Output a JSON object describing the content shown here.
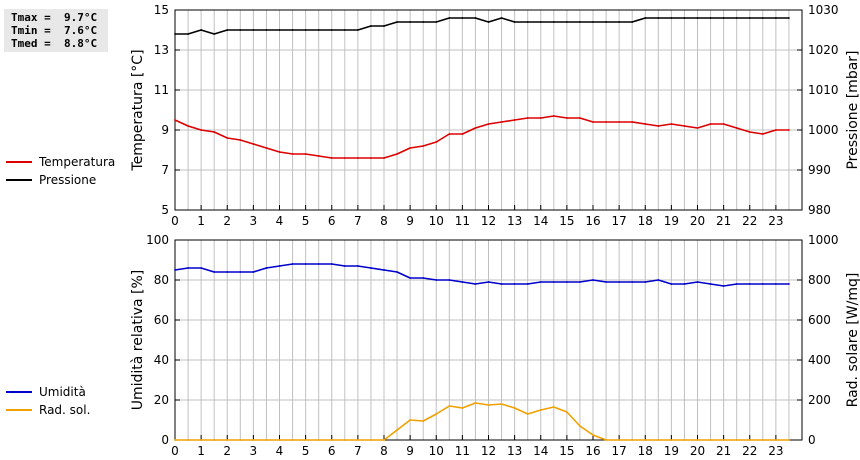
{
  "stats": {
    "tmax": "Tmax =  9.7°C",
    "tmin": "Tmin =  7.6°C",
    "tmed": "Tmed =  8.8°C"
  },
  "colors": {
    "temperature": "#dd0000",
    "pressure": "#000000",
    "humidity": "#0000cc",
    "solar": "#f0a000",
    "grid": "#c0c0c0"
  },
  "chart_data": [
    {
      "type": "line",
      "title": "",
      "grid": true,
      "x": [
        0,
        0.5,
        1,
        1.5,
        2,
        2.5,
        3,
        3.5,
        4,
        4.5,
        5,
        5.5,
        6,
        6.5,
        7,
        7.5,
        8,
        8.5,
        9,
        9.5,
        10,
        10.5,
        11,
        11.5,
        12,
        12.5,
        13,
        13.5,
        14,
        14.5,
        15,
        15.5,
        16,
        16.5,
        17,
        17.5,
        18,
        18.5,
        19,
        19.5,
        20,
        20.5,
        21,
        21.5,
        22,
        22.5,
        23,
        23.5
      ],
      "xlim": [
        0,
        24
      ],
      "xticks": [
        "0",
        "1",
        "2",
        "3",
        "4",
        "5",
        "6",
        "7",
        "8",
        "9",
        "10",
        "11",
        "12",
        "13",
        "14",
        "15",
        "16",
        "17",
        "18",
        "19",
        "20",
        "21",
        "22",
        "23"
      ],
      "ylabel": "Temperatura [°C]",
      "ylim": [
        5,
        15
      ],
      "yticks": [
        "5",
        "7",
        "9",
        "11",
        "13",
        "15"
      ],
      "y2label": "Pressione [mbar]",
      "y2lim": [
        980,
        1030
      ],
      "y2ticks": [
        "980",
        "990",
        "1000",
        "1010",
        "1020",
        "1030"
      ],
      "series": [
        {
          "name": "Temperatura",
          "axis": "left",
          "color": "#dd0000",
          "values": [
            9.5,
            9.2,
            9.0,
            8.9,
            8.6,
            8.5,
            8.3,
            8.1,
            7.9,
            7.8,
            7.8,
            7.7,
            7.6,
            7.6,
            7.6,
            7.6,
            7.6,
            7.8,
            8.1,
            8.2,
            8.4,
            8.8,
            8.8,
            9.1,
            9.3,
            9.4,
            9.5,
            9.6,
            9.6,
            9.7,
            9.6,
            9.6,
            9.4,
            9.4,
            9.4,
            9.4,
            9.3,
            9.2,
            9.3,
            9.2,
            9.1,
            9.3,
            9.3,
            9.1,
            8.9,
            8.8,
            9.0,
            9.0
          ]
        },
        {
          "name": "Pressione",
          "axis": "right",
          "color": "#000000",
          "values": [
            1024,
            1024,
            1025,
            1024,
            1025,
            1025,
            1025,
            1025,
            1025,
            1025,
            1025,
            1025,
            1025,
            1025,
            1025,
            1026,
            1026,
            1027,
            1027,
            1027,
            1027,
            1028,
            1028,
            1028,
            1027,
            1028,
            1027,
            1027,
            1027,
            1027,
            1027,
            1027,
            1027,
            1027,
            1027,
            1027,
            1028,
            1028,
            1028,
            1028,
            1028,
            1028,
            1028,
            1028,
            1028,
            1028,
            1028,
            1028
          ]
        }
      ]
    },
    {
      "type": "line",
      "title": "",
      "grid": true,
      "x": [
        0,
        0.5,
        1,
        1.5,
        2,
        2.5,
        3,
        3.5,
        4,
        4.5,
        5,
        5.5,
        6,
        6.5,
        7,
        7.5,
        8,
        8.5,
        9,
        9.5,
        10,
        10.5,
        11,
        11.5,
        12,
        12.5,
        13,
        13.5,
        14,
        14.5,
        15,
        15.5,
        16,
        16.5,
        17,
        17.5,
        18,
        18.5,
        19,
        19.5,
        20,
        20.5,
        21,
        21.5,
        22,
        22.5,
        23,
        23.5
      ],
      "xlim": [
        0,
        24
      ],
      "xticks": [
        "0",
        "1",
        "2",
        "3",
        "4",
        "5",
        "6",
        "7",
        "8",
        "9",
        "10",
        "11",
        "12",
        "13",
        "14",
        "15",
        "16",
        "17",
        "18",
        "19",
        "20",
        "21",
        "22",
        "23"
      ],
      "ylabel": "Umidità relativa [%]",
      "ylim": [
        0,
        100
      ],
      "yticks": [
        "0",
        "20",
        "40",
        "60",
        "80",
        "100"
      ],
      "y2label": "Rad. solare [W/mq]",
      "y2lim": [
        0,
        1000
      ],
      "y2ticks": [
        "0",
        "200",
        "400",
        "600",
        "800",
        "1000"
      ],
      "series": [
        {
          "name": "Umidità",
          "axis": "left",
          "color": "#0000cc",
          "values": [
            85,
            86,
            86,
            84,
            84,
            84,
            84,
            86,
            87,
            88,
            88,
            88,
            88,
            87,
            87,
            86,
            85,
            84,
            81,
            81,
            80,
            80,
            79,
            78,
            79,
            78,
            78,
            78,
            79,
            79,
            79,
            79,
            80,
            79,
            79,
            79,
            79,
            80,
            78,
            78,
            79,
            78,
            77,
            78,
            78,
            78,
            78,
            78
          ]
        },
        {
          "name": "Rad. sol.",
          "axis": "right",
          "color": "#f0a000",
          "values": [
            0,
            0,
            0,
            0,
            0,
            0,
            0,
            0,
            0,
            0,
            0,
            0,
            0,
            0,
            0,
            0,
            0,
            50,
            100,
            95,
            130,
            170,
            160,
            185,
            175,
            180,
            160,
            130,
            150,
            165,
            140,
            70,
            25,
            0,
            0,
            0,
            0,
            0,
            0,
            0,
            0,
            0,
            0,
            0,
            0,
            0,
            0,
            0
          ]
        }
      ]
    }
  ]
}
